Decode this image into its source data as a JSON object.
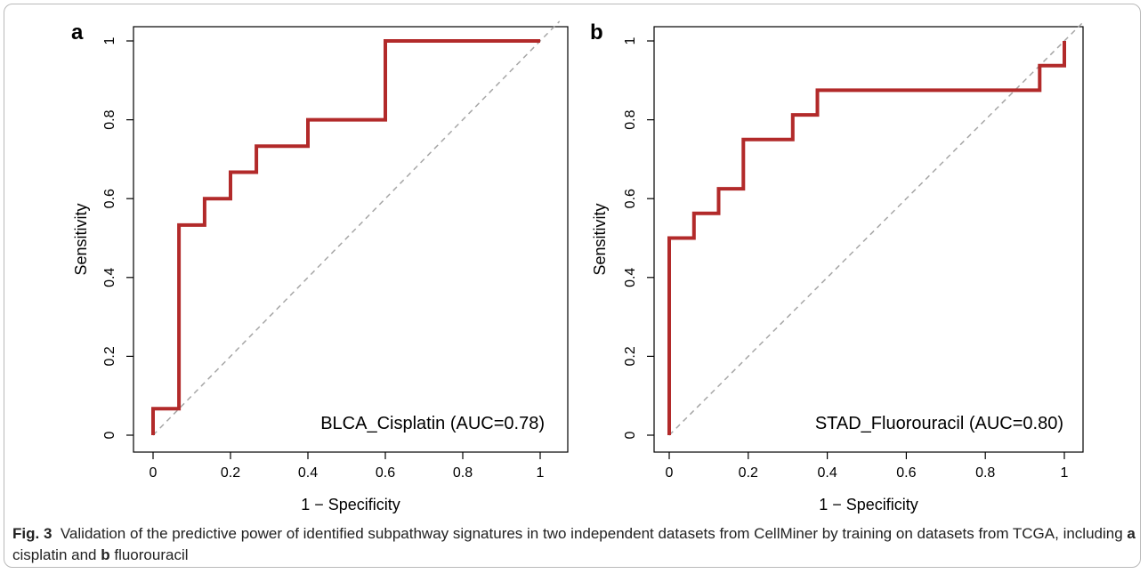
{
  "chart_data": [
    {
      "type": "line",
      "panel_label": "a",
      "xlabel": "1 − Specificity",
      "ylabel": "Sensitivity",
      "xlim": [
        0,
        1
      ],
      "ylim": [
        0,
        1
      ],
      "x_ticks": [
        "0",
        "0.2",
        "0.4",
        "0.6",
        "0.8",
        "1"
      ],
      "y_ticks": [
        "0",
        "0.2",
        "0.4",
        "0.6",
        "0.8",
        "1"
      ],
      "annotation": "BLCA_Cisplatin (AUC=0.78)",
      "series": [
        {
          "x": [
            0,
            0,
            0.067,
            0.067,
            0.133,
            0.133,
            0.2,
            0.2,
            0.267,
            0.267,
            0.4,
            0.4,
            0.6,
            0.6,
            1.0
          ],
          "y": [
            0,
            0.067,
            0.067,
            0.533,
            0.533,
            0.6,
            0.6,
            0.667,
            0.667,
            0.733,
            0.733,
            0.8,
            0.8,
            1.0,
            1.0
          ],
          "color": "#b22a2a"
        }
      ],
      "reference_line": {
        "x": [
          0,
          1
        ],
        "y": [
          0,
          1
        ],
        "color": "#a6a6a6"
      }
    },
    {
      "type": "line",
      "panel_label": "b",
      "xlabel": "1 − Specificity",
      "ylabel": "Sensitivity",
      "xlim": [
        0,
        1
      ],
      "ylim": [
        0,
        1
      ],
      "x_ticks": [
        "0",
        "0.2",
        "0.4",
        "0.6",
        "0.8",
        "1"
      ],
      "y_ticks": [
        "0",
        "0.2",
        "0.4",
        "0.6",
        "0.8",
        "1"
      ],
      "annotation": "STAD_Fluorouracil (AUC=0.80)",
      "series": [
        {
          "x": [
            0,
            0,
            0.0625,
            0.0625,
            0.125,
            0.125,
            0.1875,
            0.1875,
            0.3125,
            0.3125,
            0.375,
            0.375,
            0.9375,
            0.9375,
            1.0,
            1.0
          ],
          "y": [
            0,
            0.5,
            0.5,
            0.5625,
            0.5625,
            0.625,
            0.625,
            0.75,
            0.75,
            0.8125,
            0.8125,
            0.875,
            0.875,
            0.9375,
            0.9375,
            1.0
          ],
          "color": "#b22a2a"
        }
      ],
      "reference_line": {
        "x": [
          0,
          1
        ],
        "y": [
          0,
          1
        ],
        "color": "#a6a6a6"
      }
    }
  ],
  "caption": {
    "fig_label": "Fig. 3",
    "text_1": "Validation of the predictive power of identified subpathway signatures in two independent datasets from CellMiner by training on datasets from TCGA, including ",
    "bold_a": "a",
    "text_2": " cisplatin and ",
    "bold_b": "b",
    "text_3": " fluorouracil"
  }
}
